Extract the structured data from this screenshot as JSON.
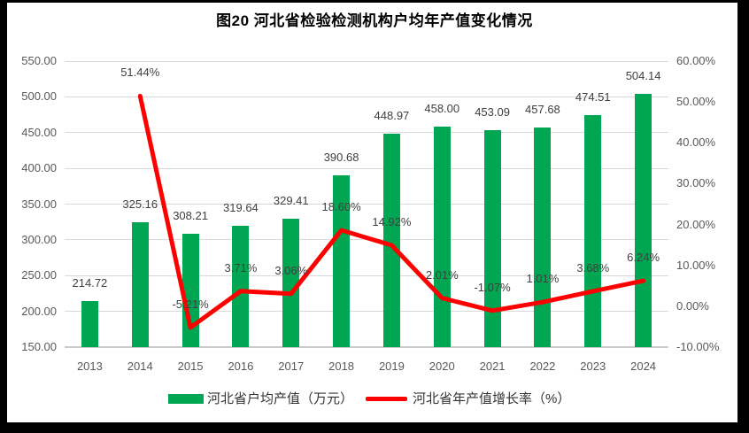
{
  "title": "图20 河北省检验检测机构户均年产值变化情况",
  "legend": {
    "bar_label": "河北省户均产值（万元）",
    "line_label": "河北省年产值增长率（%）"
  },
  "colors": {
    "bar": "#00A651",
    "line": "#FF0000",
    "grid": "#D9D9D9",
    "axis_text": "#595959",
    "data_label_text": "#404040"
  },
  "chart_data": {
    "type": "combo-bar-line",
    "title": "图20 河北省检验检测机构户均年产值变化情况",
    "categories": [
      "2013",
      "2014",
      "2015",
      "2016",
      "2017",
      "2018",
      "2019",
      "2020",
      "2021",
      "2022",
      "2023",
      "2024"
    ],
    "series": [
      {
        "name": "河北省户均产值（万元）",
        "type": "bar",
        "axis": "left",
        "values": [
          214.72,
          325.16,
          308.21,
          319.64,
          329.41,
          390.68,
          448.97,
          458.0,
          453.09,
          457.68,
          474.51,
          504.14
        ],
        "labels": [
          "214.72",
          "325.16",
          "308.21",
          "319.64",
          "329.41",
          "390.68",
          "448.97",
          "458.00",
          "453.09",
          "457.68",
          "474.51",
          "504.14"
        ]
      },
      {
        "name": "河北省年产值增长率（%）",
        "type": "line",
        "axis": "right",
        "values": [
          null,
          51.44,
          -5.21,
          3.71,
          3.06,
          18.6,
          14.92,
          2.01,
          -1.07,
          1.01,
          3.68,
          6.24
        ],
        "labels": [
          null,
          "51.44%",
          "-5.21%",
          "3.71%",
          "3.06%",
          "18.60%",
          "14.92%",
          "2.01%",
          "-1.07%",
          "1.01%",
          "3.68%",
          "6.24%"
        ]
      }
    ],
    "left_axis": {
      "min": 150,
      "max": 550,
      "step": 50,
      "tick_labels": [
        "150.00",
        "200.00",
        "250.00",
        "300.00",
        "350.00",
        "400.00",
        "450.00",
        "500.00",
        "550.00"
      ]
    },
    "right_axis": {
      "min": -10,
      "max": 60,
      "step": 10,
      "tick_labels": [
        "-10.00%",
        "0.00%",
        "10.00%",
        "20.00%",
        "30.00%",
        "40.00%",
        "50.00%",
        "60.00%"
      ]
    },
    "grid": true,
    "legend_position": "bottom"
  }
}
